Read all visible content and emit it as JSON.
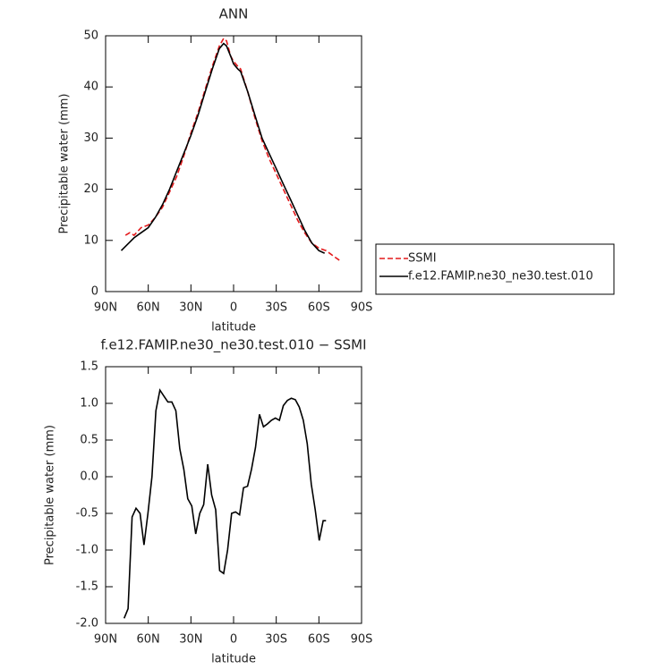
{
  "chart_data": [
    {
      "type": "line",
      "title": "ANN",
      "xlabel": "latitude",
      "ylabel": "Precipitable water (mm)",
      "xlim": [
        90,
        -90
      ],
      "ylim": [
        0,
        50
      ],
      "xticks": [
        {
          "value": 90,
          "label": "90N"
        },
        {
          "value": 60,
          "label": "60N"
        },
        {
          "value": 30,
          "label": "30N"
        },
        0,
        {
          "value": -30,
          "label": "30S"
        },
        {
          "value": -60,
          "label": "60S"
        },
        {
          "value": -90,
          "label": "90S"
        }
      ],
      "yticks": [
        0,
        10,
        20,
        30,
        40,
        50
      ],
      "legend": "outside-right",
      "series": [
        {
          "name": "SSMI",
          "color": "#e41a1c",
          "line_style": "dashed",
          "x": [
            76,
            73,
            70,
            65,
            60,
            55,
            50,
            45,
            40,
            35,
            30,
            25,
            20,
            15,
            10,
            7,
            5,
            2,
            0,
            -3,
            -5,
            -10,
            -15,
            -20,
            -25,
            -30,
            -35,
            -40,
            -45,
            -50,
            -55,
            -60,
            -65,
            -70,
            -75
          ],
          "values": [
            11,
            11.5,
            11,
            12.5,
            13,
            14.5,
            16.5,
            19.5,
            22.5,
            26.5,
            31,
            35,
            39.5,
            44,
            48,
            49.5,
            49,
            46,
            45,
            44,
            43.5,
            39,
            34,
            29.5,
            26,
            23,
            20,
            17,
            14,
            11.5,
            9.5,
            8.5,
            8,
            7,
            6
          ]
        },
        {
          "name": "f.e12.FAMIP.ne30_ne30.test.010",
          "color": "#000000",
          "line_style": "solid",
          "x": [
            79,
            70,
            65,
            60,
            55,
            50,
            45,
            40,
            35,
            30,
            25,
            20,
            15,
            10,
            7,
            5,
            2,
            0,
            -3,
            -5,
            -10,
            -15,
            -20,
            -25,
            -30,
            -35,
            -40,
            -45,
            -50,
            -55,
            -60,
            -64
          ],
          "values": [
            8,
            10.5,
            11.5,
            12.5,
            14.5,
            17,
            20,
            23.5,
            27,
            30.5,
            34.5,
            39,
            43.5,
            47.5,
            48.5,
            48,
            46,
            44.5,
            43.5,
            43,
            39,
            34.5,
            30,
            27,
            24,
            21,
            18,
            15,
            12,
            9.5,
            8,
            7.5
          ]
        }
      ]
    },
    {
      "type": "line",
      "title": "f.e12.FAMIP.ne30_ne30.test.010 − SSMI",
      "xlabel": "latitude",
      "ylabel": "Precipitable water (mm)",
      "xlim": [
        90,
        -90
      ],
      "ylim": [
        -2.0,
        1.5
      ],
      "xticks": [
        {
          "value": 90,
          "label": "90N"
        },
        {
          "value": 60,
          "label": "60N"
        },
        {
          "value": 30,
          "label": "30N"
        },
        0,
        {
          "value": -30,
          "label": "30S"
        },
        {
          "value": -60,
          "label": "60S"
        },
        {
          "value": -90,
          "label": "90S"
        }
      ],
      "yticks": [
        1.5,
        {
          "value": 1,
          "label": "1.0"
        },
        0.5,
        {
          "value": 0,
          "label": "0.0"
        },
        -0.5,
        {
          "value": -1,
          "label": "-1.0"
        },
        -1.5,
        {
          "value": -2,
          "label": "-2.0"
        }
      ],
      "color": "#000000",
      "x": [
        77,
        74.2,
        71.4,
        68.6,
        65.8,
        63,
        60.2,
        57.4,
        54.6,
        51.8,
        49,
        46.2,
        43.4,
        40.6,
        37.8,
        35,
        32.2,
        29.4,
        26.6,
        23.8,
        21,
        18.2,
        15.4,
        12.6,
        9.8,
        7,
        4.2,
        1.4,
        -1.4,
        -4.2,
        -7,
        -9.8,
        -12.6,
        -15.4,
        -18.2,
        -21,
        -23.8,
        -26.6,
        -29.4,
        -32.2,
        -35,
        -37.8,
        -40.6,
        -43.4,
        -46.2,
        -49,
        -51.8,
        -54.6,
        -57.4,
        -60.2,
        -63,
        -65
      ],
      "values": [
        -1.93,
        -1.8,
        -0.55,
        -0.43,
        -0.5,
        -0.93,
        -0.5,
        0,
        0.9,
        1.18,
        1.1,
        1.02,
        1.02,
        0.9,
        0.38,
        0.1,
        -0.3,
        -0.4,
        -0.78,
        -0.5,
        -0.38,
        0.17,
        -0.25,
        -0.45,
        -1.28,
        -1.32,
        -1.0,
        -0.5,
        -0.48,
        -0.52,
        -0.15,
        -0.13,
        0.1,
        0.4,
        0.85,
        0.68,
        0.72,
        0.77,
        0.8,
        0.77,
        0.97,
        1.04,
        1.07,
        1.05,
        0.95,
        0.77,
        0.45,
        -0.1,
        -0.45,
        -0.87,
        -0.6,
        -0.6
      ]
    }
  ]
}
